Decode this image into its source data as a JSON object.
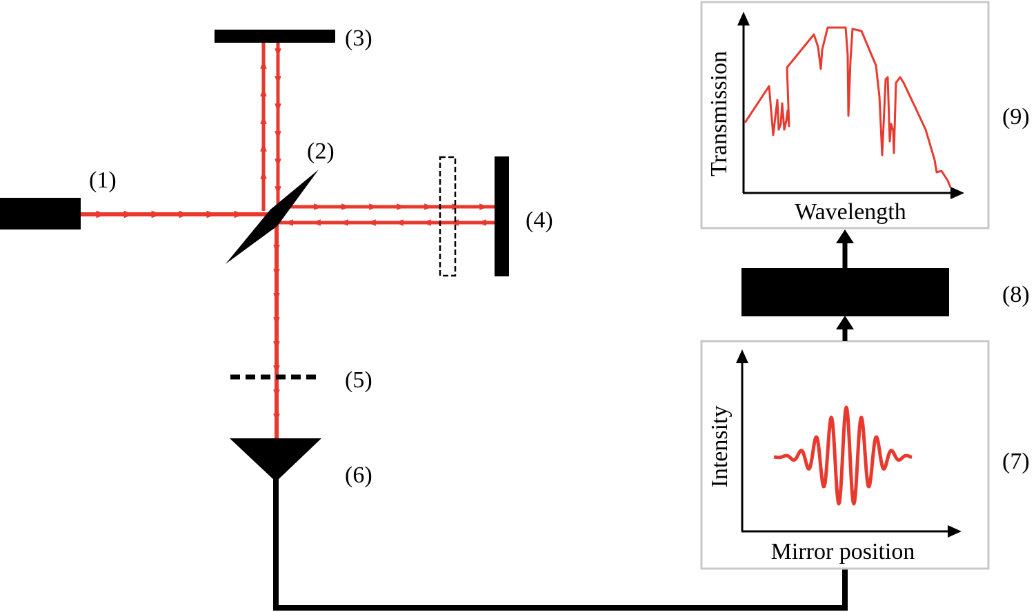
{
  "colors": {
    "beam": "#e8392f",
    "ink": "#000000",
    "panel_border": "#c8c8c8"
  },
  "labels": {
    "source": "(1)",
    "beamsplitter": "(2)",
    "fixed_mirror": "(3)",
    "moving_mirror": "(4)",
    "filter": "(5)",
    "detector": "(6)",
    "interferogram": "(7)",
    "processor": "(8)",
    "spectrum": "(9)"
  },
  "interferogram_panel": {
    "xlabel": "Mirror position",
    "ylabel": "Intensity"
  },
  "spectrum_panel": {
    "xlabel": "Wavelength",
    "ylabel": "Transmission"
  }
}
